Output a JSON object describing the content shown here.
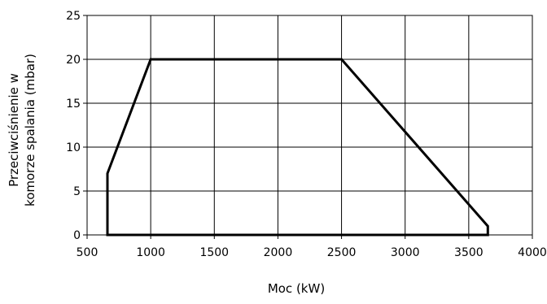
{
  "chart_data": {
    "type": "line",
    "title": "",
    "xlabel": "Moc (kW)",
    "ylabel_lines": [
      "Przeciwciśnienie w",
      "komorze spalania (mbar)"
    ],
    "xlim": [
      500,
      4000
    ],
    "ylim": [
      0,
      25
    ],
    "xticks": [
      500,
      1000,
      1500,
      2000,
      2500,
      3000,
      3500,
      4000
    ],
    "yticks": [
      0,
      5,
      10,
      15,
      20,
      25
    ],
    "grid": true,
    "line_color": "#000000",
    "series": [
      {
        "closed": true,
        "x": [
          660,
          660,
          1000,
          2500,
          3650,
          3650
        ],
        "y": [
          0,
          7,
          20,
          20,
          1,
          0
        ]
      }
    ]
  }
}
